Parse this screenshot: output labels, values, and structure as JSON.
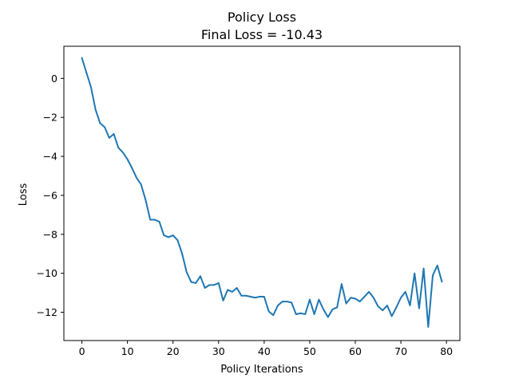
{
  "chart_data": {
    "type": "line",
    "title": "Policy Loss",
    "subtitle": "Final Loss = -10.43",
    "xlabel": "Policy Iterations",
    "ylabel": "Loss",
    "xlim": [
      -3.95,
      82.95
    ],
    "ylim": [
      -13.45,
      1.65
    ],
    "xticks": [
      0,
      10,
      20,
      30,
      40,
      50,
      60,
      70,
      80
    ],
    "yticks": [
      0,
      -2,
      -4,
      -6,
      -8,
      -10,
      -12
    ],
    "xtick_labels": [
      "0",
      "10",
      "20",
      "30",
      "40",
      "50",
      "60",
      "70",
      "80"
    ],
    "ytick_labels": [
      "0",
      "−2",
      "−4",
      "−6",
      "−8",
      "−10",
      "−12"
    ],
    "grid": false,
    "legend": null,
    "line_color": "#1f77b4",
    "series": [
      {
        "x": [
          0,
          1,
          2,
          3,
          4,
          5,
          6,
          7,
          8,
          9,
          10,
          11,
          12,
          13,
          14,
          15,
          16,
          17,
          18,
          19,
          20,
          21,
          22,
          23,
          24,
          25,
          26,
          27,
          28,
          29,
          30,
          31,
          32,
          33,
          34,
          35,
          36,
          37,
          38,
          39,
          40,
          41,
          42,
          43,
          44,
          45,
          46,
          47,
          48,
          49,
          50,
          51,
          52,
          53,
          54,
          55,
          56,
          57,
          58,
          59,
          60,
          61,
          62,
          63,
          64,
          65,
          66,
          67,
          68,
          69,
          70,
          71,
          72,
          73,
          74,
          75,
          76,
          77,
          78,
          79
        ],
        "y": [
          1.05,
          0.3,
          -0.45,
          -1.6,
          -2.3,
          -2.5,
          -3.05,
          -2.85,
          -3.55,
          -3.8,
          -4.15,
          -4.6,
          -5.1,
          -5.45,
          -6.25,
          -7.25,
          -7.25,
          -7.35,
          -8.05,
          -8.15,
          -8.05,
          -8.3,
          -9.0,
          -9.95,
          -10.45,
          -10.5,
          -10.15,
          -10.75,
          -10.6,
          -10.6,
          -10.5,
          -11.4,
          -10.85,
          -10.95,
          -10.75,
          -11.15,
          -11.15,
          -11.2,
          -11.25,
          -11.2,
          -11.2,
          -11.95,
          -12.15,
          -11.65,
          -11.45,
          -11.45,
          -11.5,
          -12.1,
          -12.05,
          -12.1,
          -11.35,
          -12.1,
          -11.35,
          -11.85,
          -12.25,
          -11.85,
          -11.75,
          -10.55,
          -11.55,
          -11.25,
          -11.3,
          -11.45,
          -11.2,
          -10.95,
          -11.25,
          -11.7,
          -11.9,
          -11.65,
          -12.2,
          -11.75,
          -11.25,
          -10.95,
          -11.65,
          -10.0,
          -11.8,
          -9.75,
          -12.75,
          -10.1,
          -9.6,
          -10.43
        ]
      }
    ]
  }
}
